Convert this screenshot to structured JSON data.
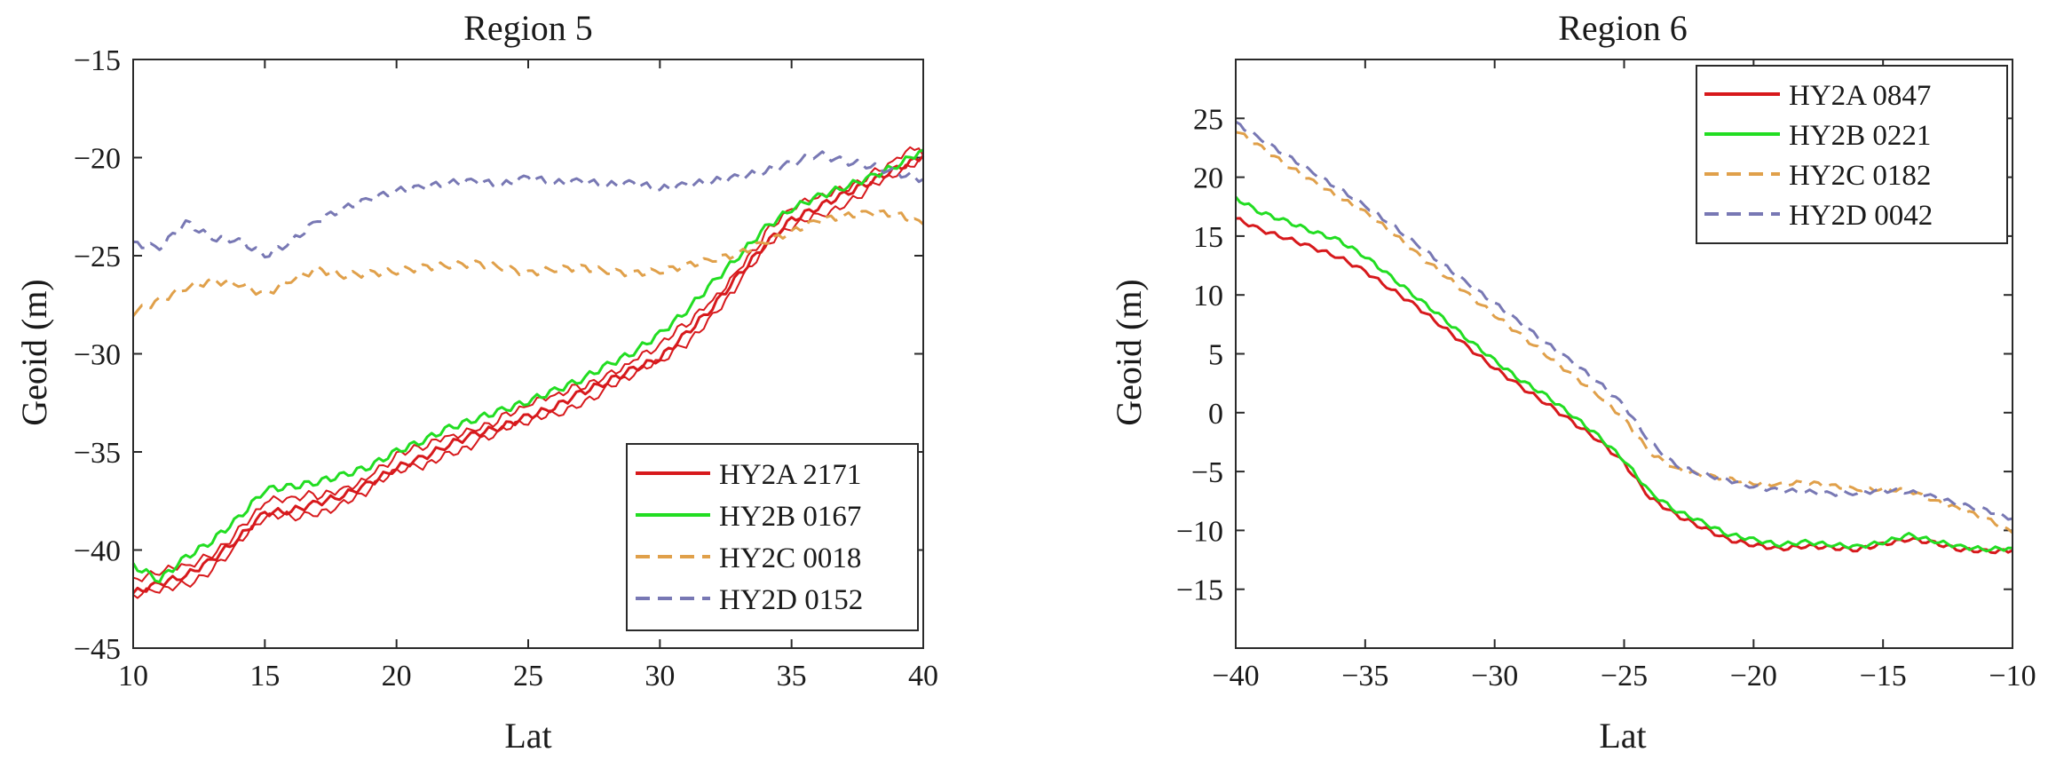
{
  "chart_data": [
    {
      "type": "line",
      "title": "Region 5",
      "xlabel": "Lat",
      "ylabel": "Geoid (m)",
      "xlim": [
        10,
        40
      ],
      "ylim": [
        -45,
        -15
      ],
      "xticks": [
        10,
        15,
        20,
        25,
        30,
        35,
        40
      ],
      "yticks": [
        -45,
        -40,
        -35,
        -30,
        -25,
        -20,
        -15
      ],
      "legend_position": "bottom-right",
      "series": [
        {
          "name": "HY2A 2171",
          "color": "#d7191c",
          "dash": "solid",
          "copies": 3,
          "x": [
            10,
            11,
            12,
            13,
            14,
            15,
            16,
            17,
            18,
            19,
            20,
            21,
            22,
            23,
            24,
            25,
            26,
            27,
            28,
            29,
            30,
            31,
            32,
            33,
            34,
            35,
            36,
            37,
            38,
            39,
            40
          ],
          "y": [
            -42.2,
            -41.7,
            -41.3,
            -40.5,
            -39.4,
            -38.1,
            -38.0,
            -37.6,
            -37.2,
            -36.6,
            -35.8,
            -35.3,
            -34.6,
            -34.1,
            -33.7,
            -33.2,
            -32.7,
            -32.0,
            -31.4,
            -30.8,
            -30.2,
            -29.0,
            -27.6,
            -26.0,
            -24.4,
            -23.2,
            -22.5,
            -21.9,
            -21.2,
            -20.6,
            -19.9
          ]
        },
        {
          "name": "HY2B 0167",
          "color": "#22dd22",
          "dash": "solid",
          "copies": 1,
          "x": [
            10,
            11,
            12,
            13,
            14,
            15,
            16,
            17,
            18,
            19,
            20,
            21,
            22,
            23,
            24,
            25,
            26,
            27,
            28,
            29,
            30,
            31,
            32,
            33,
            34,
            35,
            36,
            37,
            38,
            39,
            40
          ],
          "y": [
            -40.8,
            -41.5,
            -40.4,
            -39.5,
            -38.4,
            -36.9,
            -36.8,
            -36.5,
            -36.2,
            -35.7,
            -35.0,
            -34.4,
            -33.8,
            -33.3,
            -32.9,
            -32.4,
            -31.9,
            -31.3,
            -30.6,
            -29.9,
            -29.0,
            -27.8,
            -26.4,
            -25.0,
            -23.6,
            -22.6,
            -22.0,
            -21.5,
            -21.0,
            -20.4,
            -19.6
          ]
        },
        {
          "name": "HY2C 0018",
          "color": "#e0a04a",
          "dash": "dashed",
          "copies": 1,
          "x": [
            10,
            11,
            12,
            13,
            14,
            15,
            16,
            17,
            18,
            19,
            20,
            21,
            22,
            23,
            24,
            25,
            26,
            27,
            28,
            29,
            30,
            31,
            32,
            33,
            34,
            35,
            36,
            37,
            38,
            39,
            40
          ],
          "y": [
            -27.9,
            -27.3,
            -26.6,
            -26.3,
            -26.4,
            -27.0,
            -26.2,
            -25.7,
            -26.0,
            -25.9,
            -25.8,
            -25.6,
            -25.5,
            -25.4,
            -25.6,
            -25.9,
            -25.7,
            -25.6,
            -25.8,
            -25.9,
            -25.8,
            -25.5,
            -25.2,
            -24.9,
            -24.3,
            -23.8,
            -23.2,
            -23.0,
            -22.8,
            -22.9,
            -23.4
          ]
        },
        {
          "name": "HY2D 0152",
          "color": "#7878b4",
          "dash": "dashed",
          "copies": 1,
          "x": [
            10,
            11,
            12,
            13,
            14,
            15,
            16,
            17,
            18,
            19,
            20,
            21,
            22,
            23,
            24,
            25,
            26,
            27,
            28,
            29,
            30,
            31,
            32,
            33,
            34,
            35,
            36,
            37,
            38,
            39,
            40
          ],
          "y": [
            -24.4,
            -24.6,
            -23.3,
            -24.1,
            -24.2,
            -25.0,
            -24.3,
            -23.2,
            -22.6,
            -22.1,
            -21.7,
            -21.5,
            -21.3,
            -21.2,
            -21.4,
            -21.0,
            -21.3,
            -21.2,
            -21.4,
            -21.3,
            -21.6,
            -21.4,
            -21.2,
            -21.0,
            -20.7,
            -20.3,
            -19.8,
            -20.2,
            -20.4,
            -20.8,
            -21.1
          ]
        }
      ]
    },
    {
      "type": "line",
      "title": "Region 6",
      "xlabel": "Lat",
      "ylabel": "Geoid (m)",
      "xlim": [
        -40,
        -10
      ],
      "ylim": [
        -20,
        30
      ],
      "xticks": [
        -40,
        -35,
        -30,
        -25,
        -20,
        -15,
        -10
      ],
      "yticks": [
        -15,
        -10,
        -5,
        0,
        5,
        10,
        15,
        20,
        25
      ],
      "legend_position": "top-right",
      "series": [
        {
          "name": "HY2A 0847",
          "color": "#d7191c",
          "dash": "solid",
          "copies": 1,
          "x": [
            -40,
            -39,
            -38,
            -37,
            -36,
            -35,
            -34,
            -33,
            -32,
            -31,
            -30,
            -29,
            -28,
            -27,
            -26,
            -25,
            -24,
            -23,
            -22,
            -21,
            -20,
            -19,
            -18,
            -17,
            -16,
            -15,
            -14,
            -13,
            -12,
            -11,
            -10
          ],
          "y": [
            16.5,
            15.5,
            14.8,
            14.0,
            13.2,
            12.0,
            10.5,
            9.0,
            7.3,
            5.5,
            3.8,
            2.2,
            0.8,
            -0.8,
            -2.3,
            -4.3,
            -7.2,
            -8.7,
            -9.7,
            -10.8,
            -11.2,
            -11.6,
            -11.3,
            -11.5,
            -11.6,
            -11.2,
            -10.7,
            -11.1,
            -11.6,
            -11.8,
            -11.7
          ]
        },
        {
          "name": "HY2B 0221",
          "color": "#22dd22",
          "dash": "solid",
          "copies": 1,
          "x": [
            -40,
            -39,
            -38,
            -37,
            -36,
            -35,
            -34,
            -33,
            -32,
            -31,
            -30,
            -29,
            -28,
            -27,
            -26,
            -25,
            -24,
            -23,
            -22,
            -21,
            -20,
            -19,
            -18,
            -17,
            -16,
            -15,
            -14,
            -13,
            -12,
            -11,
            -10
          ],
          "y": [
            18.2,
            17.0,
            16.2,
            15.4,
            14.6,
            13.3,
            11.5,
            9.8,
            8.0,
            6.2,
            4.4,
            2.8,
            1.4,
            -0.2,
            -2.0,
            -4.0,
            -6.8,
            -8.3,
            -9.3,
            -10.3,
            -10.8,
            -11.2,
            -11.0,
            -11.2,
            -11.4,
            -11.0,
            -10.4,
            -10.9,
            -11.4,
            -11.6,
            -11.5
          ]
        },
        {
          "name": "HY2C 0182",
          "color": "#e0a04a",
          "dash": "dashed",
          "copies": 1,
          "x": [
            -40,
            -39,
            -38,
            -37,
            -36,
            -35,
            -34,
            -33,
            -32,
            -31,
            -30,
            -29,
            -28,
            -27,
            -26,
            -25,
            -24,
            -23,
            -22,
            -21,
            -20,
            -19,
            -18,
            -17,
            -16,
            -15,
            -14,
            -13,
            -12,
            -11,
            -10
          ],
          "y": [
            24.0,
            22.5,
            21.0,
            19.6,
            18.3,
            17.0,
            15.4,
            13.5,
            11.8,
            10.0,
            8.3,
            6.6,
            4.9,
            3.2,
            1.5,
            -0.5,
            -3.4,
            -4.8,
            -5.3,
            -5.6,
            -6.0,
            -6.1,
            -5.9,
            -6.2,
            -6.5,
            -6.5,
            -6.6,
            -7.5,
            -8.2,
            -9.0,
            -10.2
          ]
        },
        {
          "name": "HY2D 0042",
          "color": "#7878b4",
          "dash": "dashed",
          "copies": 1,
          "x": [
            -40,
            -39,
            -38,
            -37,
            -36,
            -35,
            -34,
            -33,
            -32,
            -31,
            -30,
            -29,
            -28,
            -27,
            -26,
            -25,
            -24,
            -23,
            -22,
            -21,
            -20,
            -19,
            -18,
            -17,
            -16,
            -15,
            -14,
            -13,
            -12,
            -11,
            -10
          ],
          "y": [
            24.6,
            23.2,
            21.8,
            20.4,
            19.0,
            17.6,
            16.0,
            14.3,
            12.6,
            10.9,
            9.3,
            7.6,
            5.9,
            4.3,
            2.6,
            0.6,
            -2.5,
            -4.5,
            -5.2,
            -5.7,
            -6.3,
            -6.6,
            -6.7,
            -6.9,
            -6.8,
            -6.6,
            -6.7,
            -7.2,
            -7.8,
            -8.3,
            -9.0
          ]
        }
      ]
    }
  ]
}
